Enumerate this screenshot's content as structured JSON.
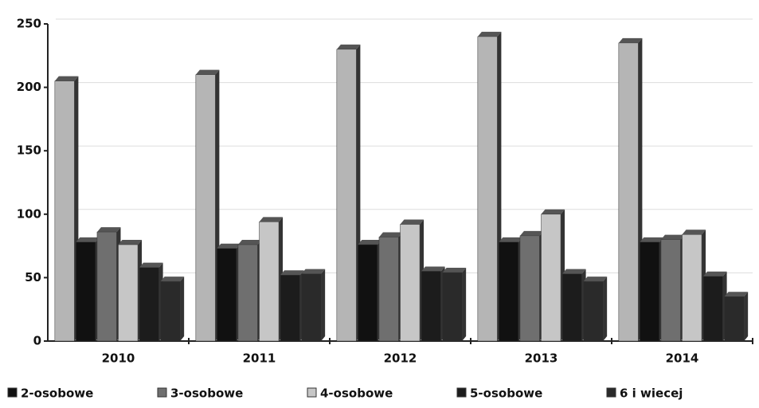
{
  "chart_data": {
    "type": "bar",
    "categories": [
      "2010",
      "2011",
      "2012",
      "2013",
      "2014"
    ],
    "series": [
      {
        "name": null,
        "color": "#b5b5b5",
        "values": [
          205,
          210,
          230,
          240,
          235
        ]
      },
      {
        "name": "2-osobowe",
        "color": "#111111",
        "values": [
          78,
          73,
          76,
          78,
          78
        ]
      },
      {
        "name": "3-osobowe",
        "color": "#6f6f6f",
        "values": [
          86,
          76,
          82,
          83,
          80
        ]
      },
      {
        "name": "4-osobowe",
        "color": "#c6c6c6",
        "values": [
          76,
          94,
          92,
          100,
          84
        ]
      },
      {
        "name": "5-osobowe",
        "color": "#1c1c1c",
        "values": [
          58,
          52,
          55,
          53,
          51
        ]
      },
      {
        "name": "6 i wiecej",
        "color": "#2a2a2a",
        "values": [
          47,
          53,
          54,
          47,
          35
        ]
      }
    ],
    "ylim": [
      0,
      250
    ],
    "yticks": [
      0,
      50,
      100,
      150,
      200,
      250
    ],
    "grid": true
  }
}
